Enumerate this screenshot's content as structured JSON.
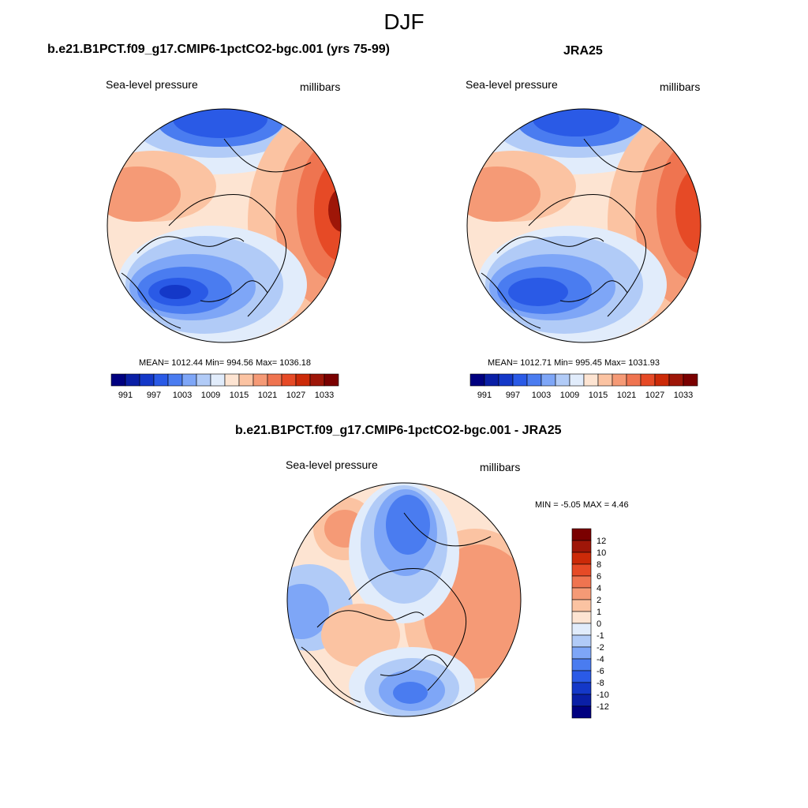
{
  "figure": {
    "title": "DJF"
  },
  "panels": [
    {
      "title": "b.e21.B1PCT.f09_g17.CMIP6-1pctCO2-bgc.001 (yrs 75-99)",
      "left_label": "Sea-level pressure",
      "right_label": "millibars",
      "stats": "MEAN= 1012.44  Min= 994.56  Max= 1036.18"
    },
    {
      "title": "JRA25",
      "left_label": "Sea-level pressure",
      "right_label": "millibars",
      "stats": "MEAN= 1012.71  Min= 995.45  Max= 1031.93"
    },
    {
      "title": "b.e21.B1PCT.f09_g17.CMIP6-1pctCO2-bgc.001 - JRA25",
      "left_label": "Sea-level pressure",
      "right_label": "millibars",
      "stats": "MIN =  -5.05 MAX =   4.46"
    }
  ],
  "colorbar_abs": {
    "colors": [
      "#000080",
      "#0a1fa6",
      "#1438c8",
      "#2a5ae6",
      "#4a7cf0",
      "#7ea6f7",
      "#b1cbf7",
      "#e1ecfb",
      "#fde4d2",
      "#fbc3a2",
      "#f59a76",
      "#ef7450",
      "#e64a26",
      "#cc2a08",
      "#9e1608",
      "#7a0000"
    ],
    "tick_labels": [
      "991",
      "997",
      "1003",
      "1009",
      "1015",
      "1021",
      "1027",
      "1033"
    ]
  },
  "colorbar_diff": {
    "colors": [
      "#000080",
      "#0a1fa6",
      "#1438c8",
      "#2a5ae6",
      "#4a7cf0",
      "#7ea6f7",
      "#b1cbf7",
      "#e1ecfb",
      "#fde4d2",
      "#fbc3a2",
      "#f59a76",
      "#ef7450",
      "#e64a26",
      "#cc2a08",
      "#9e1608",
      "#7a0000"
    ],
    "tick_labels": [
      "12",
      "10",
      "8",
      "6",
      "4",
      "2",
      "1",
      "0",
      "-1",
      "-2",
      "-4",
      "-6",
      "-8",
      "-10",
      "-12"
    ]
  }
}
